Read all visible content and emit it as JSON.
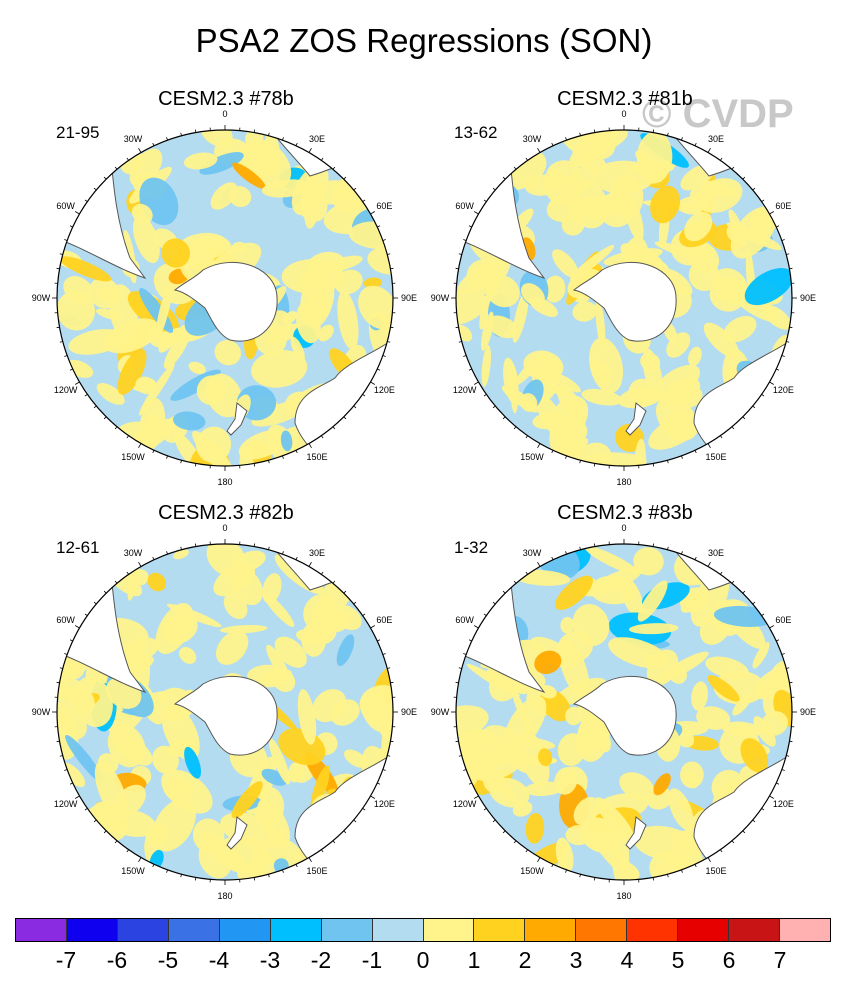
{
  "figure": {
    "title": "PSA2 ZOS Regressions (SON)",
    "watermark": "© CVDP"
  },
  "panels": [
    {
      "title": "CESM2.3 #78b",
      "period": "21-95"
    },
    {
      "title": "CESM2.3 #81b",
      "period": "13-62"
    },
    {
      "title": "CESM2.3 #82b",
      "period": "12-61"
    },
    {
      "title": "CESM2.3 #83b",
      "period": "1-32"
    }
  ],
  "longitude_labels": [
    "0",
    "30E",
    "60E",
    "90E",
    "120E",
    "150E",
    "180",
    "150W",
    "120W",
    "90W",
    "60W",
    "30W"
  ],
  "colorbar": {
    "colors": [
      "#8a2be2",
      "#1000f0",
      "#2b43e0",
      "#3a72e6",
      "#2196f3",
      "#00bfff",
      "#70c4f0",
      "#b4dcf0",
      "#fff38c",
      "#ffd21f",
      "#ffaa00",
      "#ff7700",
      "#ff3300",
      "#e60000",
      "#c81414",
      "#ffb0b0"
    ],
    "labels": [
      "-7",
      "-6",
      "-5",
      "-4",
      "-3",
      "-2",
      "-1",
      "0",
      "1",
      "2",
      "3",
      "4",
      "5",
      "6",
      "7"
    ]
  },
  "map_colors": {
    "ocean_base": "#b4dcf0",
    "land": "#ffffff",
    "coast": "#555555"
  }
}
